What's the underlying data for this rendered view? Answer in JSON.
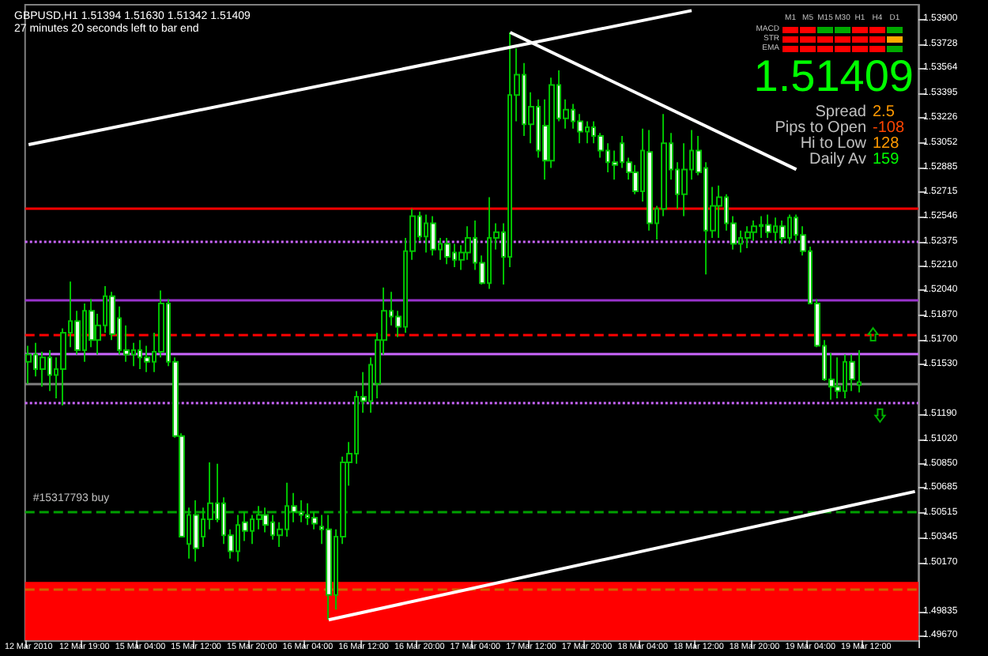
{
  "chart_data": {
    "type": "candlestick",
    "title": "GBPUSD,H1 1.51394 1.51630 1.51342 1.51409",
    "subtitle": "27 minutes 20 seconds left to bar end",
    "categories": [
      "12 Mar 2010",
      null,
      null,
      null,
      null,
      null,
      null,
      null,
      "12 Mar 19:00",
      null,
      null,
      null,
      null,
      null,
      null,
      null,
      "15 Mar 04:00",
      null,
      null,
      null,
      null,
      null,
      null,
      null,
      "15 Mar 12:00",
      null,
      null,
      null,
      null,
      null,
      null,
      null,
      "15 Mar 20:00",
      null,
      null,
      null,
      null,
      null,
      null,
      null,
      "16 Mar 04:00",
      null,
      null,
      null,
      null,
      null,
      null,
      null,
      "16 Mar 12:00",
      null,
      null,
      null,
      null,
      null,
      null,
      null,
      "16 Mar 20:00",
      null,
      null,
      null,
      null,
      null,
      null,
      null,
      "17 Mar 04:00",
      null,
      null,
      null,
      null,
      null,
      null,
      null,
      "17 Mar 12:00",
      null,
      null,
      null,
      null,
      null,
      null,
      null,
      "17 Mar 20:00",
      null,
      null,
      null,
      null,
      null,
      null,
      null,
      "18 Mar 04:00",
      null,
      null,
      null,
      null,
      null,
      null,
      null,
      "18 Mar 12:00",
      null,
      null,
      null,
      null,
      null,
      null,
      null,
      "18 Mar 20:00",
      null,
      null,
      null,
      null,
      null,
      null,
      null,
      "19 Mar 04:00",
      null,
      null,
      null,
      null,
      null,
      null,
      null,
      "19 Mar 12:00",
      null,
      null,
      null,
      null,
      null,
      null,
      null
    ],
    "ohlc": [
      [
        1.5155,
        1.5166,
        1.514,
        1.516
      ],
      [
        1.516,
        1.5168,
        1.5145,
        1.515
      ],
      [
        1.515,
        1.5162,
        1.5138,
        1.5158
      ],
      [
        1.5158,
        1.5163,
        1.5135,
        1.5146
      ],
      [
        1.5146,
        1.5158,
        1.513,
        1.515
      ],
      [
        1.515,
        1.5178,
        1.5125,
        1.5175
      ],
      [
        1.5175,
        1.521,
        1.5165,
        1.5183
      ],
      [
        1.5183,
        1.519,
        1.516,
        1.5163
      ],
      [
        1.5163,
        1.5195,
        1.5155,
        1.519
      ],
      [
        1.519,
        1.5198,
        1.5165,
        1.517
      ],
      [
        1.517,
        1.5188,
        1.516,
        1.518
      ],
      [
        1.518,
        1.5207,
        1.5175,
        1.52
      ],
      [
        1.52,
        1.5203,
        1.517,
        1.5174
      ],
      [
        1.5185,
        1.5193,
        1.516,
        1.5163
      ],
      [
        1.5163,
        1.518,
        1.5155,
        1.516
      ],
      [
        1.516,
        1.5168,
        1.5152,
        1.5163
      ],
      [
        1.5163,
        1.517,
        1.515,
        1.5158
      ],
      [
        1.5158,
        1.5166,
        1.5148,
        1.5155
      ],
      [
        1.5155,
        1.5175,
        1.5148,
        1.5162
      ],
      [
        1.5162,
        1.5204,
        1.5158,
        1.5195
      ],
      [
        1.5195,
        1.5198,
        1.5152,
        1.5155
      ],
      [
        1.5155,
        1.5158,
        1.5103,
        1.5104
      ],
      [
        1.5104,
        1.5106,
        1.5035,
        1.5035
      ],
      [
        1.503,
        1.5055,
        1.502,
        1.505
      ],
      [
        1.505,
        1.506,
        1.5018,
        1.5027
      ],
      [
        1.5035,
        1.5055,
        1.5028,
        1.5047
      ],
      [
        1.5047,
        1.5086,
        1.504,
        1.5058
      ],
      [
        1.5058,
        1.5085,
        1.5045,
        1.5047
      ],
      [
        1.5058,
        1.5062,
        1.503,
        1.5036
      ],
      [
        1.5036,
        1.504,
        1.502,
        1.5025
      ],
      [
        1.5025,
        1.505,
        1.5018,
        1.5043
      ],
      [
        1.5045,
        1.5052,
        1.5032,
        1.5039
      ],
      [
        1.5039,
        1.505,
        1.503,
        1.5047
      ],
      [
        1.5047,
        1.5056,
        1.504,
        1.505
      ],
      [
        1.505,
        1.5055,
        1.5038,
        1.5043
      ],
      [
        1.5045,
        1.505,
        1.5033,
        1.5036
      ],
      [
        1.5036,
        1.5045,
        1.5028,
        1.504
      ],
      [
        1.504,
        1.5072,
        1.5035,
        1.5056
      ],
      [
        1.5056,
        1.5065,
        1.5045,
        1.5052
      ],
      [
        1.5052,
        1.506,
        1.5045,
        1.505
      ],
      [
        1.505,
        1.5058,
        1.5043,
        1.5048
      ],
      [
        1.5048,
        1.5052,
        1.504,
        1.5044
      ],
      [
        1.5042,
        1.505,
        1.503,
        1.504
      ],
      [
        1.504,
        1.505,
        1.4978,
        1.4995
      ],
      [
        1.4995,
        1.504,
        1.4985,
        1.5035
      ],
      [
        1.5035,
        1.509,
        1.503,
        1.5086
      ],
      [
        1.5086,
        1.51,
        1.507,
        1.5092
      ],
      [
        1.5092,
        1.5135,
        1.5085,
        1.5131
      ],
      [
        1.5131,
        1.5148,
        1.512,
        1.5128
      ],
      [
        1.5128,
        1.5158,
        1.512,
        1.5153
      ],
      [
        1.514,
        1.5175,
        1.513,
        1.517
      ],
      [
        1.517,
        1.5206,
        1.516,
        1.519
      ],
      [
        1.519,
        1.5203,
        1.518,
        1.5186
      ],
      [
        1.5186,
        1.519,
        1.5172,
        1.5179
      ],
      [
        1.5179,
        1.524,
        1.5175,
        1.5231
      ],
      [
        1.5231,
        1.526,
        1.5225,
        1.5255
      ],
      [
        1.5255,
        1.5258,
        1.5238,
        1.5241
      ],
      [
        1.5241,
        1.5256,
        1.523,
        1.525
      ],
      [
        1.525,
        1.5255,
        1.5228,
        1.5232
      ],
      [
        1.5232,
        1.524,
        1.5225,
        1.5236
      ],
      [
        1.5236,
        1.524,
        1.5222,
        1.5227
      ],
      [
        1.523,
        1.5236,
        1.522,
        1.5225
      ],
      [
        1.5225,
        1.5235,
        1.5218,
        1.523
      ],
      [
        1.523,
        1.5248,
        1.5225,
        1.524
      ],
      [
        1.524,
        1.5252,
        1.5218,
        1.5223
      ],
      [
        1.5223,
        1.5228,
        1.5208,
        1.5209
      ],
      [
        1.5209,
        1.5268,
        1.5205,
        1.524
      ],
      [
        1.524,
        1.525,
        1.5232,
        1.5244
      ],
      [
        1.5244,
        1.525,
        1.5208,
        1.5227
      ],
      [
        1.5227,
        1.5381,
        1.522,
        1.5338
      ],
      [
        1.5338,
        1.537,
        1.532,
        1.5352
      ],
      [
        1.5352,
        1.536,
        1.531,
        1.5318
      ],
      [
        1.5318,
        1.534,
        1.5305,
        1.533
      ],
      [
        1.533,
        1.5335,
        1.5295,
        1.53
      ],
      [
        1.5317,
        1.5335,
        1.528,
        1.5293
      ],
      [
        1.5293,
        1.535,
        1.5288,
        1.5345
      ],
      [
        1.5345,
        1.5355,
        1.532,
        1.5322
      ],
      [
        1.5322,
        1.5335,
        1.5315,
        1.5328
      ],
      [
        1.5328,
        1.5332,
        1.5315,
        1.532
      ],
      [
        1.532,
        1.5325,
        1.5305,
        1.5313
      ],
      [
        1.5313,
        1.532,
        1.5305,
        1.5316
      ],
      [
        1.5316,
        1.532,
        1.5305,
        1.531
      ],
      [
        1.531,
        1.5312,
        1.5295,
        1.53
      ],
      [
        1.53,
        1.5305,
        1.5285,
        1.5292
      ],
      [
        1.5292,
        1.53,
        1.528,
        1.529
      ],
      [
        1.5305,
        1.531,
        1.5288,
        1.5292
      ],
      [
        1.5292,
        1.5295,
        1.528,
        1.5285
      ],
      [
        1.5285,
        1.529,
        1.527,
        1.5272
      ],
      [
        1.5272,
        1.5315,
        1.5265,
        1.53
      ],
      [
        1.5299,
        1.5314,
        1.5245,
        1.525
      ],
      [
        1.525,
        1.5262,
        1.5239,
        1.526
      ],
      [
        1.526,
        1.5325,
        1.5255,
        1.5305
      ],
      [
        1.5305,
        1.5312,
        1.528,
        1.5287
      ],
      [
        1.5287,
        1.5292,
        1.526,
        1.527
      ],
      [
        1.527,
        1.5305,
        1.5255,
        1.5287
      ],
      [
        1.5287,
        1.5314,
        1.528,
        1.53
      ],
      [
        1.53,
        1.531,
        1.5283,
        1.5285
      ],
      [
        1.5288,
        1.5292,
        1.5215,
        1.5245
      ],
      [
        1.5245,
        1.5275,
        1.524,
        1.5262
      ],
      [
        1.5262,
        1.5276,
        1.524,
        1.5268
      ],
      [
        1.5268,
        1.527,
        1.5245,
        1.525
      ],
      [
        1.525,
        1.5255,
        1.5232,
        1.5236
      ],
      [
        1.5236,
        1.5245,
        1.523,
        1.524
      ],
      [
        1.524,
        1.5248,
        1.5233,
        1.5244
      ],
      [
        1.5244,
        1.5252,
        1.5238,
        1.5248
      ],
      [
        1.5248,
        1.5255,
        1.524,
        1.5249
      ],
      [
        1.5249,
        1.5256,
        1.524,
        1.5244
      ],
      [
        1.5244,
        1.5254,
        1.5238,
        1.5248
      ],
      [
        1.5248,
        1.5252,
        1.5236,
        1.524
      ],
      [
        1.524,
        1.5256,
        1.5236,
        1.5254
      ],
      [
        1.5254,
        1.5256,
        1.5238,
        1.5242
      ],
      [
        1.5242,
        1.5248,
        1.5228,
        1.5231
      ],
      [
        1.5231,
        1.5234,
        1.5195,
        1.5195
      ],
      [
        1.5195,
        1.5198,
        1.5165,
        1.5166
      ],
      [
        1.5166,
        1.517,
        1.5142,
        1.5143
      ],
      [
        1.5143,
        1.5161,
        1.5129,
        1.5138
      ],
      [
        1.5138,
        1.5158,
        1.513,
        1.5135
      ],
      [
        1.5135,
        1.516,
        1.513,
        1.5155
      ],
      [
        1.5155,
        1.516,
        1.5135,
        1.5143
      ],
      [
        1.5139,
        1.5163,
        1.5134,
        1.5141
      ],
      null,
      null,
      null,
      null,
      null,
      null,
      null,
      null
    ],
    "series": [
      {
        "type": "line",
        "color": "#ffffff",
        "values": [
          1.5304,
          null,
          null,
          null,
          null,
          null,
          null,
          null,
          null,
          null,
          null,
          null,
          null,
          null,
          null,
          null,
          null,
          null,
          null,
          null,
          null,
          null,
          null,
          null,
          null,
          null,
          null,
          null,
          null,
          null,
          null,
          null,
          null,
          null,
          null,
          null,
          null,
          null,
          null,
          null,
          null,
          null,
          null,
          null,
          null,
          null,
          null,
          null,
          null,
          null,
          null,
          null,
          null,
          null,
          null,
          null,
          null,
          null,
          null,
          null,
          null,
          null,
          null,
          null,
          null,
          null,
          null,
          null,
          null,
          null,
          null,
          null,
          null,
          null,
          null,
          null,
          null,
          null,
          null,
          null,
          null,
          null,
          null,
          null,
          null,
          null,
          null,
          null,
          null,
          null,
          null,
          null,
          null,
          null,
          null,
          1.5396,
          null,
          null,
          null,
          null,
          null,
          null,
          null,
          null,
          null,
          null,
          null,
          null,
          null,
          null,
          null,
          null,
          null,
          null,
          null,
          null,
          null,
          null,
          null,
          null,
          null,
          null,
          null,
          null,
          null,
          null,
          null,
          null
        ]
      },
      {
        "type": "line",
        "color": "#ffffff",
        "values": [
          null,
          null,
          null,
          null,
          null,
          null,
          null,
          null,
          null,
          null,
          null,
          null,
          null,
          null,
          null,
          null,
          null,
          null,
          null,
          null,
          null,
          null,
          null,
          null,
          null,
          null,
          null,
          null,
          null,
          null,
          null,
          null,
          null,
          null,
          null,
          null,
          null,
          null,
          null,
          null,
          null,
          null,
          null,
          null,
          null,
          null,
          null,
          null,
          null,
          null,
          null,
          null,
          null,
          null,
          null,
          null,
          null,
          null,
          null,
          null,
          null,
          null,
          null,
          null,
          null,
          null,
          null,
          null,
          null,
          1.5381,
          null,
          null,
          null,
          null,
          null,
          null,
          null,
          null,
          null,
          null,
          null,
          null,
          null,
          null,
          null,
          null,
          null,
          null,
          null,
          null,
          null,
          null,
          null,
          null,
          null,
          null,
          null,
          null,
          null,
          null,
          null,
          null,
          null,
          null,
          null,
          null,
          null,
          null,
          null,
          null,
          1.5287,
          null,
          null,
          null,
          null,
          null,
          null,
          null,
          null,
          null,
          null,
          null,
          null,
          null,
          null,
          null,
          null,
          null
        ]
      },
      {
        "type": "line",
        "color": "#ffffff",
        "values": [
          null,
          null,
          null,
          null,
          null,
          null,
          null,
          null,
          null,
          null,
          null,
          null,
          null,
          null,
          null,
          null,
          null,
          null,
          null,
          null,
          null,
          null,
          null,
          null,
          null,
          null,
          null,
          null,
          null,
          null,
          null,
          null,
          null,
          null,
          null,
          null,
          null,
          null,
          null,
          null,
          null,
          null,
          null,
          1.4978,
          null,
          null,
          null,
          null,
          null,
          null,
          null,
          null,
          null,
          null,
          null,
          null,
          null,
          null,
          null,
          null,
          null,
          null,
          null,
          null,
          null,
          null,
          null,
          null,
          null,
          null,
          null,
          null,
          null,
          null,
          null,
          null,
          null,
          null,
          null,
          null,
          null,
          null,
          null,
          null,
          null,
          null,
          null,
          null,
          null,
          null,
          null,
          null,
          null,
          null,
          null,
          null,
          null,
          null,
          null,
          null,
          null,
          null,
          null,
          null,
          null,
          null,
          null,
          null,
          null,
          null,
          null,
          null,
          null,
          null,
          null,
          null,
          null,
          null,
          null,
          null,
          null,
          null,
          null,
          null,
          null,
          null,
          null,
          1.5066
        ]
      }
    ],
    "ylim": [
      1.4964,
      1.54
    ],
    "yticks": [
      {
        "value": 1.539,
        "label": "1.53900"
      },
      {
        "value": 1.53728,
        "label": "1.53728"
      },
      {
        "value": 1.53564,
        "label": "1.53564"
      },
      {
        "value": 1.53395,
        "label": "1.53395"
      },
      {
        "value": 1.53226,
        "label": "1.53226"
      },
      {
        "value": 1.53052,
        "label": "1.53052"
      },
      {
        "value": 1.52885,
        "label": "1.52885"
      },
      {
        "value": 1.52715,
        "label": "1.52715"
      },
      {
        "value": 1.52546,
        "label": "1.52546"
      },
      {
        "value": 1.52375,
        "label": "1.52375"
      },
      {
        "value": 1.5221,
        "label": "1.52210"
      },
      {
        "value": 1.5204,
        "label": "1.52040"
      },
      {
        "value": 1.5187,
        "label": "1.51870"
      },
      {
        "value": 1.517,
        "label": "1.51700"
      },
      {
        "value": 1.5153,
        "label": "1.51530"
      },
      {
        "value": 1.5119,
        "label": "1.51190"
      },
      {
        "value": 1.5102,
        "label": "1.51020"
      },
      {
        "value": 1.5085,
        "label": "1.50850"
      },
      {
        "value": 1.50685,
        "label": "1.50685"
      },
      {
        "value": 1.50515,
        "label": "1.50515"
      },
      {
        "value": 1.50345,
        "label": "1.50345"
      },
      {
        "value": 1.5017,
        "label": "1.50170"
      },
      {
        "value": 1.49835,
        "label": "1.49835"
      },
      {
        "value": 1.4967,
        "label": "1.49670"
      }
    ],
    "ref_lines": [
      {
        "axis": "y",
        "value": 1.526,
        "color": "#ff0000",
        "line_style": "solid"
      },
      {
        "axis": "y",
        "value": 1.5238,
        "color": "#cc66ff",
        "line_style": "dotted"
      },
      {
        "axis": "y",
        "value": 1.5197,
        "color": "#9933cc",
        "line_style": "solid"
      },
      {
        "axis": "y",
        "value": 1.5174,
        "color": "#ff0000",
        "line_style": "dashed"
      },
      {
        "axis": "y",
        "value": 1.5161,
        "color": "#cc66ff",
        "line_style": "solid"
      },
      {
        "axis": "y",
        "value": 1.514,
        "color": "#808080",
        "line_style": "solid"
      },
      {
        "axis": "y",
        "value": 1.5127,
        "color": "#cc66ff",
        "line_style": "dotted"
      },
      {
        "axis": "y",
        "value": 1.5052,
        "color": "#00a000",
        "line_style": "dashed",
        "label": "#15317793 buy"
      },
      {
        "axis": "y",
        "value": 1.4999,
        "color": "#cc6600",
        "line_style": "dashed"
      }
    ],
    "bands": [
      {
        "axis": "y",
        "from": 1.4964,
        "to": 1.5004,
        "color": "#ff0000"
      }
    ],
    "annotations": [
      "M1",
      "M5",
      "M15",
      "M30",
      "H1",
      "H4",
      "D1",
      "MACD",
      "STR",
      "EMA",
      "1.51409",
      "Spread",
      "2.5",
      "Pips to Open",
      "-108",
      "Hi to Low",
      "128",
      "Daily Av",
      "159"
    ]
  }
}
